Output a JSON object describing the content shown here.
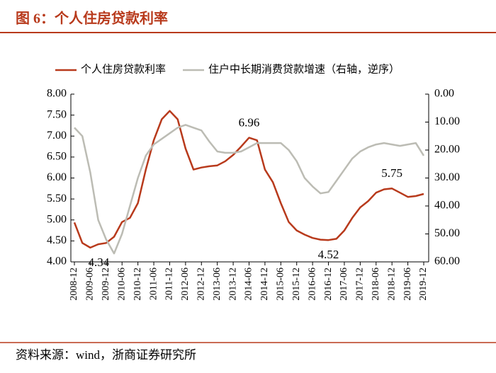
{
  "chart_data": {
    "type": "line",
    "title": "图 6：个人住房贷款利率",
    "source": "资料来源：wind，浙商证券研究所",
    "categories": [
      "2008-12",
      null,
      "2009-06",
      null,
      "2009-12",
      null,
      "2010-06",
      null,
      "2010-12",
      null,
      "2011-06",
      null,
      "2011-12",
      null,
      "2012-06",
      null,
      "2012-12",
      null,
      "2013-06",
      null,
      "2013-12",
      null,
      "2014-06",
      null,
      "2014-12",
      null,
      "2015-06",
      null,
      "2015-12",
      null,
      "2016-06",
      null,
      "2016-12",
      null,
      "2017-06",
      null,
      "2017-12",
      null,
      "2018-06",
      null,
      "2018-12",
      null,
      "2019-06",
      null,
      "2019-12"
    ],
    "series": [
      {
        "name": "个人住房贷款利率",
        "color": "#b83a1c",
        "axis": "y",
        "values": [
          4.94,
          4.45,
          4.34,
          4.42,
          4.45,
          4.6,
          4.95,
          5.05,
          5.4,
          6.2,
          6.9,
          7.4,
          7.6,
          7.4,
          6.7,
          6.2,
          6.25,
          6.28,
          6.3,
          6.4,
          6.55,
          6.75,
          6.96,
          6.9,
          6.2,
          5.9,
          5.4,
          4.95,
          4.75,
          4.65,
          4.57,
          4.53,
          4.52,
          4.55,
          4.75,
          5.05,
          5.3,
          5.45,
          5.65,
          5.73,
          5.75,
          5.65,
          5.55,
          5.57,
          5.62
        ]
      },
      {
        "name": "住户中长期消费贷款增速（右轴，逆序）",
        "color": "#bcbcb4",
        "axis": "y2",
        "values": [
          12,
          15,
          28,
          45,
          52,
          57,
          50,
          40,
          30,
          22,
          18,
          16,
          14,
          12,
          11,
          12,
          13,
          17,
          20.5,
          21,
          21,
          20.5,
          19,
          17.5,
          17.5,
          17.5,
          17.5,
          20,
          24,
          30,
          33,
          35.5,
          35,
          31,
          27,
          23,
          20.5,
          19,
          18,
          17.5,
          18,
          18.5,
          18,
          17.5,
          22
        ]
      }
    ],
    "labeled_points": [
      2,
      22,
      32,
      40
    ],
    "ylim": [
      4,
      8
    ],
    "yticks": [
      {
        "value": 4,
        "label": "4.00"
      },
      {
        "value": 4.5,
        "label": "4.50"
      },
      {
        "value": 5,
        "label": "5.00"
      },
      {
        "value": 5.5,
        "label": "5.50"
      },
      {
        "value": 6,
        "label": "6.00"
      },
      {
        "value": 6.5,
        "label": "6.50"
      },
      {
        "value": 7,
        "label": "7.00"
      },
      {
        "value": 7.5,
        "label": "7.50"
      },
      {
        "value": 8,
        "label": "8.00"
      }
    ],
    "y2lim": [
      0,
      60
    ],
    "y2_inverted": true,
    "y2ticks": [
      {
        "value": 0,
        "label": "0.00"
      },
      {
        "value": 10,
        "label": "10.00"
      },
      {
        "value": 20,
        "label": "20.00"
      },
      {
        "value": 30,
        "label": "30.00"
      },
      {
        "value": 40,
        "label": "40.00"
      },
      {
        "value": 50,
        "label": "50.00"
      },
      {
        "value": 60,
        "label": "60.00"
      }
    ],
    "grid": false,
    "legend": "top"
  }
}
